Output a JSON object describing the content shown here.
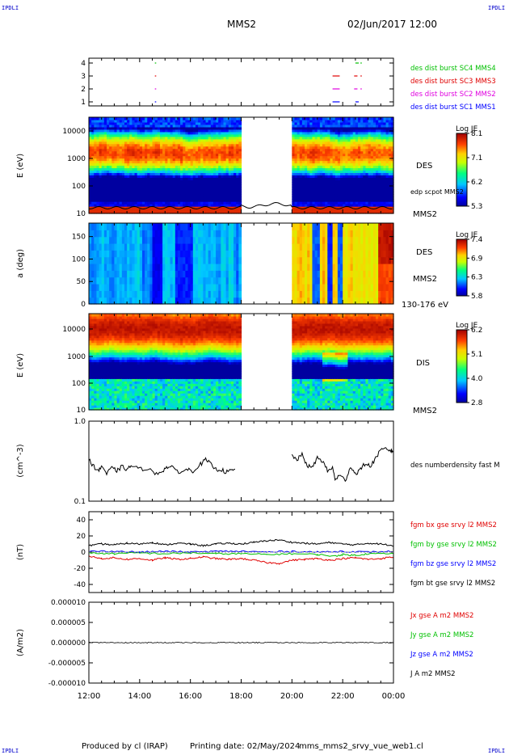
{
  "header": {
    "logo_left": "IPDLI",
    "logo_right": "IPDLI",
    "mission": "MMS2",
    "datetime": "02/Jun/2017 12:00"
  },
  "footer": {
    "produced": "Produced by cl (IRAP)",
    "printing": "Printing date: 02/May/2024",
    "file": "mms_mms2_srvy_vue_web1.cl",
    "logo_left": "IPDLI",
    "logo_right": "IPDLI"
  },
  "colors": {
    "red": "#e00000",
    "green": "#00c000",
    "blue": "#0000ff",
    "magenta": "#e000e0",
    "black": "#000000"
  },
  "chart_data": [
    {
      "id": "burst",
      "type": "scatter",
      "yticks": [
        "1",
        "2",
        "3",
        "4"
      ],
      "series": [
        {
          "name": "des dist burst SC1 MMS1",
          "color": "#0000ff",
          "y": 1
        },
        {
          "name": "des dist burst SC2 MMS2",
          "color": "#e000e0",
          "y": 2
        },
        {
          "name": "des dist burst SC3 MMS3",
          "color": "#e00000",
          "y": 3
        },
        {
          "name": "des dist burst SC4 MMS4",
          "color": "#00c000",
          "y": 4
        }
      ],
      "segments": [
        {
          "y": 1,
          "x0": 14.6,
          "x1": 14.62
        },
        {
          "y": 1,
          "x0": 21.6,
          "x1": 21.85
        },
        {
          "y": 1,
          "x0": 22.5,
          "x1": 22.6
        },
        {
          "y": 2,
          "x0": 14.6,
          "x1": 14.62
        },
        {
          "y": 2,
          "x0": 21.6,
          "x1": 21.85
        },
        {
          "y": 2,
          "x0": 22.45,
          "x1": 22.55
        },
        {
          "y": 2,
          "x0": 22.7,
          "x1": 22.72
        },
        {
          "y": 3,
          "x0": 14.6,
          "x1": 14.62
        },
        {
          "y": 3,
          "x0": 21.6,
          "x1": 21.85
        },
        {
          "y": 3,
          "x0": 22.45,
          "x1": 22.55
        },
        {
          "y": 3,
          "x0": 22.7,
          "x1": 22.72
        },
        {
          "y": 4,
          "x0": 14.6,
          "x1": 14.62
        },
        {
          "y": 4,
          "x0": 22.5,
          "x1": 22.6
        },
        {
          "y": 4,
          "x0": 22.7,
          "x1": 22.72
        }
      ]
    },
    {
      "id": "des_energy",
      "type": "heatmap",
      "ylabel": "E (eV)",
      "label": "DES",
      "sublabel": "MMS2",
      "overlay_label": "edp scpot MMS2",
      "yticks": [
        "10",
        "100",
        "1000",
        "10000"
      ],
      "colorbar": {
        "title": "Log JE",
        "ticks": [
          "8.1",
          "7.1",
          "6.2",
          "5.3"
        ]
      },
      "gaps": [
        [
          18.0,
          20.0
        ]
      ]
    },
    {
      "id": "des_pitch",
      "type": "heatmap",
      "ylabel": "a (deg)",
      "label": "DES",
      "sublabel": "MMS2",
      "energy_range": "130-176 eV",
      "yticks": [
        "0",
        "50",
        "100",
        "150"
      ],
      "colorbar": {
        "title": "Log JE",
        "ticks": [
          "7.4",
          "6.9",
          "6.3",
          "5.8"
        ]
      },
      "gaps": [
        [
          18.0,
          20.0
        ]
      ]
    },
    {
      "id": "dis_energy",
      "type": "heatmap",
      "ylabel": "E (eV)",
      "label": "DIS",
      "sublabel": "MMS2",
      "yticks": [
        "10",
        "100",
        "1000",
        "10000"
      ],
      "colorbar": {
        "title": "Log JE",
        "ticks": [
          "6.2",
          "5.1",
          "4.0",
          "2.8"
        ]
      },
      "gaps": [
        [
          18.0,
          20.0
        ]
      ]
    },
    {
      "id": "density",
      "type": "line",
      "ylabel": "(cm^-3)",
      "yticks": [
        "1.0",
        "0.1"
      ],
      "ylim": [
        0.1,
        1.0
      ],
      "series": [
        {
          "name": "des numberdensity fast M",
          "color": "#000000",
          "segments": [
            [
              [
                12.0,
                0.33
              ],
              [
                12.2,
                0.27
              ],
              [
                12.4,
                0.24
              ],
              [
                12.5,
                0.28
              ],
              [
                12.7,
                0.22
              ],
              [
                12.9,
                0.26
              ],
              [
                13.1,
                0.24
              ],
              [
                13.3,
                0.27
              ],
              [
                13.5,
                0.25
              ],
              [
                13.7,
                0.28
              ],
              [
                14.0,
                0.25
              ],
              [
                14.3,
                0.26
              ],
              [
                14.6,
                0.22
              ],
              [
                14.9,
                0.24
              ],
              [
                15.1,
                0.27
              ],
              [
                15.3,
                0.26
              ],
              [
                15.6,
                0.23
              ],
              [
                15.9,
                0.25
              ],
              [
                16.1,
                0.24
              ],
              [
                16.4,
                0.29
              ],
              [
                16.6,
                0.33
              ],
              [
                16.8,
                0.29
              ],
              [
                17.0,
                0.25
              ],
              [
                17.2,
                0.25
              ],
              [
                17.4,
                0.23
              ],
              [
                17.6,
                0.24
              ],
              [
                17.8,
                0.25
              ]
            ],
            [
              [
                20.0,
                0.37
              ],
              [
                20.2,
                0.33
              ],
              [
                20.4,
                0.38
              ],
              [
                20.6,
                0.28
              ],
              [
                20.8,
                0.26
              ],
              [
                21.0,
                0.35
              ],
              [
                21.2,
                0.32
              ],
              [
                21.4,
                0.24
              ],
              [
                21.6,
                0.26
              ],
              [
                21.7,
                0.19
              ],
              [
                21.9,
                0.21
              ],
              [
                22.1,
                0.18
              ],
              [
                22.3,
                0.27
              ],
              [
                22.5,
                0.22
              ],
              [
                22.7,
                0.25
              ],
              [
                22.9,
                0.3
              ],
              [
                23.1,
                0.27
              ],
              [
                23.3,
                0.35
              ],
              [
                23.5,
                0.43
              ],
              [
                23.7,
                0.45
              ],
              [
                23.9,
                0.43
              ],
              [
                24.0,
                0.42
              ]
            ]
          ]
        }
      ]
    },
    {
      "id": "magnetic_field",
      "type": "line",
      "ylabel": "(nT)",
      "yticks": [
        "40",
        "20",
        "0",
        "-20",
        "-40"
      ],
      "ylim": [
        -50,
        50
      ],
      "series": [
        {
          "name": "fgm bx gse srvy l2 MMS2",
          "color": "#e00000",
          "points": [
            [
              12.0,
              -5
            ],
            [
              12.5,
              -8
            ],
            [
              13.0,
              -7
            ],
            [
              13.5,
              -9
            ],
            [
              14.0,
              -8
            ],
            [
              14.5,
              -10
            ],
            [
              15.0,
              -7
            ],
            [
              15.5,
              -9
            ],
            [
              16.0,
              -8
            ],
            [
              16.5,
              -6
            ],
            [
              17.0,
              -8
            ],
            [
              17.5,
              -9
            ],
            [
              18.0,
              -8
            ],
            [
              18.5,
              -10
            ],
            [
              19.0,
              -13
            ],
            [
              19.5,
              -14
            ],
            [
              20.0,
              -10
            ],
            [
              20.5,
              -9
            ],
            [
              21.0,
              -8
            ],
            [
              21.5,
              -10
            ],
            [
              22.0,
              -8
            ],
            [
              22.5,
              -7
            ],
            [
              23.0,
              -9
            ],
            [
              23.5,
              -8
            ],
            [
              24.0,
              -6
            ]
          ]
        },
        {
          "name": "fgm by gse srvy l2 MMS2",
          "color": "#00c000",
          "points": [
            [
              12.0,
              -1
            ],
            [
              13.0,
              -2
            ],
            [
              14.0,
              -1
            ],
            [
              15.0,
              -2
            ],
            [
              16.0,
              -1
            ],
            [
              17.0,
              -2
            ],
            [
              18.0,
              -2
            ],
            [
              19.0,
              -3
            ],
            [
              20.0,
              -2
            ],
            [
              21.0,
              -3
            ],
            [
              21.7,
              -5
            ],
            [
              22.0,
              -3
            ],
            [
              22.5,
              -4
            ],
            [
              23.0,
              -2
            ],
            [
              24.0,
              -2
            ]
          ]
        },
        {
          "name": "fgm bz gse srvy l2 MMS2",
          "color": "#0000ff",
          "points": [
            [
              12.0,
              1
            ],
            [
              13.0,
              1
            ],
            [
              14.0,
              0
            ],
            [
              15.0,
              1
            ],
            [
              16.0,
              0
            ],
            [
              17.0,
              1
            ],
            [
              18.0,
              1
            ],
            [
              19.0,
              0
            ],
            [
              20.0,
              1
            ],
            [
              21.0,
              0
            ],
            [
              22.0,
              1
            ],
            [
              23.0,
              0
            ],
            [
              24.0,
              1
            ]
          ]
        },
        {
          "name": "fgm bt gse srvy l2 MMS2",
          "color": "#000000",
          "points": [
            [
              12.0,
              8
            ],
            [
              12.5,
              10
            ],
            [
              13.0,
              9
            ],
            [
              13.5,
              11
            ],
            [
              14.0,
              10
            ],
            [
              14.5,
              12
            ],
            [
              15.0,
              9
            ],
            [
              15.5,
              11
            ],
            [
              16.0,
              10
            ],
            [
              16.5,
              8
            ],
            [
              17.0,
              10
            ],
            [
              17.5,
              11
            ],
            [
              18.0,
              10
            ],
            [
              18.5,
              12
            ],
            [
              19.0,
              14
            ],
            [
              19.5,
              15
            ],
            [
              20.0,
              12
            ],
            [
              20.5,
              11
            ],
            [
              21.0,
              10
            ],
            [
              21.5,
              12
            ],
            [
              22.0,
              10
            ],
            [
              22.5,
              9
            ],
            [
              23.0,
              11
            ],
            [
              23.5,
              10
            ],
            [
              24.0,
              8
            ]
          ]
        }
      ]
    },
    {
      "id": "current",
      "type": "line",
      "ylabel": "(A/m2)",
      "yticks": [
        "0.000010",
        "0.000005",
        "0.000000",
        "-0.000005",
        "-0.000010"
      ],
      "ylim": [
        -1e-05,
        1e-05
      ],
      "xticks": [
        "12:00",
        "14:00",
        "16:00",
        "18:00",
        "20:00",
        "22:00",
        "00:00"
      ],
      "series": [
        {
          "name": "Jx gse A m2 MMS2",
          "color": "#e00000"
        },
        {
          "name": "Jy gse A m2 MMS2",
          "color": "#00c000"
        },
        {
          "name": "Jz gse A m2 MMS2",
          "color": "#0000ff"
        },
        {
          "name": "J A m2 MMS2",
          "color": "#000000"
        }
      ]
    }
  ]
}
